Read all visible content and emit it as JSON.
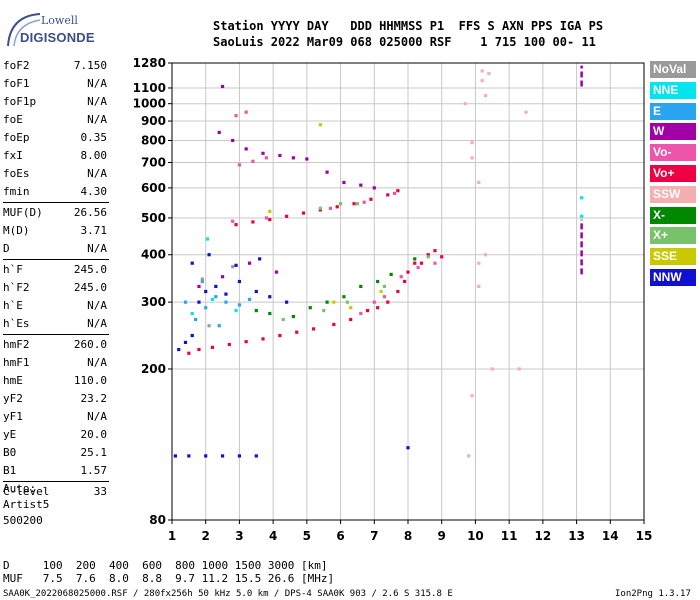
{
  "logo": {
    "brand": "Lowell",
    "name": "DIGISONDE"
  },
  "header": {
    "line1": "Station YYYY DAY   DDD HHMMSS P1  FFS S AXN PPS IGA PS",
    "line2": "SaoLuis 2022 Mar09 068 025000 RSF    1 715 100 00- 11"
  },
  "parameters": [
    {
      "label": "foF2",
      "value": "7.150"
    },
    {
      "label": "foF1",
      "value": "N/A"
    },
    {
      "label": "foF1p",
      "value": "N/A"
    },
    {
      "label": "foE",
      "value": "N/A"
    },
    {
      "label": "foEp",
      "value": "0.35"
    },
    {
      "label": "fxI",
      "value": "8.00"
    },
    {
      "label": "foEs",
      "value": "N/A"
    },
    {
      "label": "fmin",
      "value": "4.30"
    },
    {
      "label": "MUF(D)",
      "value": "26.56"
    },
    {
      "label": "M(D)",
      "value": "3.71"
    },
    {
      "label": "D",
      "value": "N/A"
    },
    {
      "label": "h`F",
      "value": "245.0"
    },
    {
      "label": "h`F2",
      "value": "245.0"
    },
    {
      "label": "h`E",
      "value": "N/A"
    },
    {
      "label": "h`Es",
      "value": "N/A"
    },
    {
      "label": "hmF2",
      "value": "260.0"
    },
    {
      "label": "hmF1",
      "value": "N/A"
    },
    {
      "label": "hmE",
      "value": "110.0"
    },
    {
      "label": "yF2",
      "value": "23.2"
    },
    {
      "label": "yF1",
      "value": "N/A"
    },
    {
      "label": "yE",
      "value": "20.0"
    },
    {
      "label": "B0",
      "value": "25.1"
    },
    {
      "label": "B1",
      "value": "1.57"
    },
    {
      "label": "C-level",
      "value": "33"
    }
  ],
  "autoscaling": {
    "line1": "Auto:",
    "line2": "Artist5",
    "line3": "500200"
  },
  "legend": [
    {
      "label": "NoVal",
      "color": "#9a9a9a"
    },
    {
      "label": "NNE",
      "color": "#00e5ee"
    },
    {
      "label": "E",
      "color": "#2aa3f0"
    },
    {
      "label": "W",
      "color": "#a000a6"
    },
    {
      "label": "Vo-",
      "color": "#ee55aa"
    },
    {
      "label": "Vo+",
      "color": "#ee0044"
    },
    {
      "label": "SSW",
      "color": "#f4b0b0"
    },
    {
      "label": "X-",
      "color": "#008800"
    },
    {
      "label": "X+",
      "color": "#77c26a"
    },
    {
      "label": "SSE",
      "color": "#c9c900"
    },
    {
      "label": "NNW",
      "color": "#1010d0"
    }
  ],
  "footer": {
    "line1": "D     100  200  400  600  800 1000 1500 3000 [km]",
    "line2": "MUF   7.5  7.6  8.0  8.8  9.7 11.2 15.5 26.6 [MHz]",
    "line3": "SAA0K_2022068025000.RSF / 280fx256h 50 kHz 5.0 km / DPS-4 SAA0K 903 / 2.6 S 315.8 E",
    "version": "Ion2Png 1.3.17"
  },
  "chart_data": {
    "type": "scatter",
    "title": "",
    "xlabel": "",
    "ylabel": "",
    "xlim": [
      1,
      15
    ],
    "ylim": [
      80,
      1280
    ],
    "x_ticks": [
      "1",
      "2",
      "3",
      "4",
      "5",
      "6",
      "7",
      "8",
      "9",
      "10",
      "11",
      "12",
      "13",
      "14",
      "15"
    ],
    "y_ticks": [
      {
        "v": 80,
        "label": "80"
      },
      {
        "v": 200,
        "label": "200"
      },
      {
        "v": 300,
        "label": "300"
      },
      {
        "v": 400,
        "label": "400"
      },
      {
        "v": 500,
        "label": "500"
      },
      {
        "v": 600,
        "label": "600"
      },
      {
        "v": 700,
        "label": "700"
      },
      {
        "v": 800,
        "label": "800"
      },
      {
        "v": 900,
        "label": "900"
      },
      {
        "v": 1000,
        "label": "1000"
      },
      {
        "v": 1100,
        "label": "1100"
      },
      {
        "v": 1280,
        "label": "1280"
      }
    ],
    "y_scale": "log",
    "grid": true,
    "legend_position": "right",
    "series": [
      {
        "color": "#ee0044",
        "points": [
          [
            7.1,
            290
          ],
          [
            7.4,
            300
          ],
          [
            7.7,
            320
          ],
          [
            7.9,
            340
          ],
          [
            8.0,
            360
          ],
          [
            8.2,
            380
          ],
          [
            8.4,
            380
          ],
          [
            8.6,
            400
          ],
          [
            8.8,
            410
          ],
          [
            9.0,
            395
          ],
          [
            6.8,
            285
          ],
          [
            6.3,
            270
          ],
          [
            5.8,
            262
          ],
          [
            5.2,
            255
          ],
          [
            4.7,
            250
          ],
          [
            4.2,
            245
          ],
          [
            3.7,
            240
          ],
          [
            3.2,
            236
          ],
          [
            2.7,
            232
          ],
          [
            2.2,
            228
          ],
          [
            1.8,
            225
          ],
          [
            1.5,
            220
          ],
          [
            7.7,
            590
          ],
          [
            7.4,
            575
          ],
          [
            6.9,
            560
          ],
          [
            6.4,
            545
          ],
          [
            5.9,
            535
          ],
          [
            5.4,
            525
          ],
          [
            4.9,
            515
          ],
          [
            4.4,
            505
          ],
          [
            3.9,
            495
          ],
          [
            3.4,
            488
          ],
          [
            2.9,
            480
          ]
        ]
      },
      {
        "color": "#ee55aa",
        "points": [
          [
            6.6,
            280
          ],
          [
            7.0,
            300
          ],
          [
            7.3,
            310
          ],
          [
            7.8,
            350
          ],
          [
            8.3,
            370
          ],
          [
            8.8,
            380
          ],
          [
            2.8,
            490
          ],
          [
            3.8,
            500
          ],
          [
            5.7,
            530
          ],
          [
            6.7,
            550
          ],
          [
            7.6,
            580
          ],
          [
            3.0,
            690
          ],
          [
            3.4,
            705
          ],
          [
            3.8,
            720
          ],
          [
            2.9,
            930
          ],
          [
            3.2,
            950
          ]
        ]
      },
      {
        "color": "#a000a6",
        "points": [
          [
            2.5,
            1110
          ],
          [
            2.4,
            840
          ],
          [
            2.8,
            800
          ],
          [
            3.2,
            760
          ],
          [
            3.7,
            740
          ],
          [
            4.2,
            730
          ],
          [
            4.6,
            720
          ],
          [
            5.0,
            715
          ],
          [
            5.6,
            660
          ],
          [
            6.1,
            620
          ],
          [
            6.6,
            610
          ],
          [
            7.0,
            600
          ],
          [
            1.8,
            330
          ],
          [
            2.5,
            350
          ],
          [
            3.3,
            380
          ],
          [
            4.1,
            360
          ]
        ]
      },
      {
        "color": "#1010d0",
        "points": [
          [
            1.2,
            225
          ],
          [
            1.4,
            235
          ],
          [
            1.6,
            245
          ],
          [
            1.8,
            300
          ],
          [
            2.0,
            320
          ],
          [
            2.3,
            330
          ],
          [
            2.6,
            315
          ],
          [
            3.0,
            340
          ],
          [
            3.5,
            320
          ],
          [
            3.9,
            310
          ],
          [
            4.4,
            300
          ],
          [
            1.6,
            380
          ],
          [
            2.1,
            400
          ],
          [
            2.9,
            375
          ],
          [
            3.6,
            390
          ],
          [
            1.1,
            118
          ],
          [
            1.5,
            118
          ],
          [
            2.0,
            118
          ],
          [
            2.5,
            118
          ],
          [
            3.0,
            118
          ],
          [
            3.5,
            118
          ],
          [
            8.0,
            124
          ]
        ]
      },
      {
        "color": "#2aa3f0",
        "points": [
          [
            1.4,
            300
          ],
          [
            1.7,
            270
          ],
          [
            2.0,
            290
          ],
          [
            2.3,
            310
          ],
          [
            2.6,
            300
          ],
          [
            3.0,
            295
          ],
          [
            3.3,
            305
          ],
          [
            1.9,
            340
          ],
          [
            2.4,
            260
          ]
        ]
      },
      {
        "color": "#00e5ee",
        "points": [
          [
            1.6,
            280
          ],
          [
            2.2,
            305
          ],
          [
            2.9,
            285
          ],
          [
            13.15,
            565
          ],
          [
            13.15,
            505
          ],
          [
            2.05,
            440
          ]
        ]
      },
      {
        "color": "#008800",
        "points": [
          [
            3.9,
            280
          ],
          [
            4.6,
            275
          ],
          [
            5.1,
            290
          ],
          [
            5.6,
            300
          ],
          [
            6.1,
            310
          ],
          [
            6.6,
            330
          ],
          [
            7.1,
            340
          ],
          [
            7.5,
            355
          ],
          [
            8.2,
            390
          ],
          [
            3.5,
            285
          ]
        ]
      },
      {
        "color": "#77c26a",
        "points": [
          [
            4.3,
            270
          ],
          [
            5.5,
            285
          ],
          [
            6.2,
            300
          ],
          [
            7.3,
            330
          ],
          [
            8.6,
            395
          ],
          [
            5.4,
            530
          ],
          [
            6.0,
            545
          ],
          [
            6.5,
            545
          ]
        ]
      },
      {
        "color": "#c9c900",
        "points": [
          [
            5.4,
            880
          ],
          [
            6.3,
            290
          ],
          [
            7.2,
            320
          ],
          [
            5.8,
            300
          ],
          [
            3.9,
            520
          ]
        ]
      },
      {
        "color": "#f4b0b0",
        "points": [
          [
            9.8,
            118
          ],
          [
            9.9,
            170
          ],
          [
            9.9,
            720
          ],
          [
            9.9,
            790
          ],
          [
            10.1,
            380
          ],
          [
            10.1,
            330
          ],
          [
            10.1,
            620
          ],
          [
            10.2,
            1220
          ],
          [
            10.2,
            1150
          ],
          [
            10.3,
            1050
          ],
          [
            10.3,
            400
          ],
          [
            10.4,
            1200
          ],
          [
            9.7,
            1000
          ],
          [
            10.5,
            200
          ],
          [
            11.3,
            200
          ],
          [
            11.5,
            950
          ]
        ]
      },
      {
        "color": "#9a9a9a",
        "points": [
          [
            2.1,
            260
          ],
          [
            1.9,
            345
          ],
          [
            2.8,
            372
          ]
        ]
      }
    ],
    "vertical_bars": [
      {
        "color": "#a000a6",
        "x": 13.15,
        "y_from": 1110,
        "y_to": 1260
      },
      {
        "color": "#a000a6",
        "x": 13.15,
        "y_from": 355,
        "y_to": 495
      }
    ]
  }
}
